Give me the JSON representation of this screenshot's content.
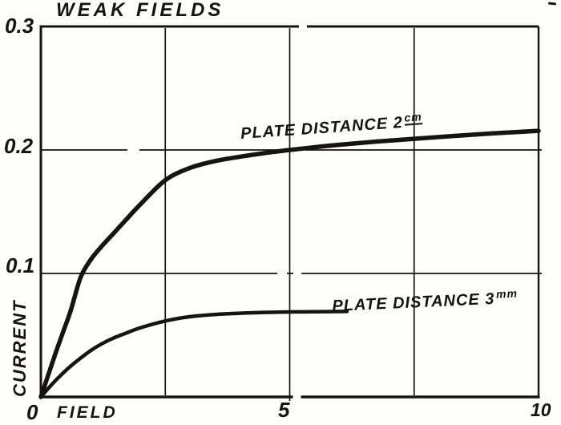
{
  "figure": {
    "title": "WEAK FIELDS",
    "x_axis_label": "FIELD",
    "y_axis_label": "CURRENT",
    "origin_label": "0",
    "x_tick_labels": {
      "v5": "5",
      "v10": "10"
    },
    "y_tick_labels": {
      "v01": "0.1",
      "v02": "0.2",
      "v03": "0.3"
    },
    "ink_color": "#171310",
    "paper_color": "#fdfdfb"
  },
  "chart_data": {
    "type": "line",
    "title": "WEAK FIELDS",
    "xlabel": "FIELD",
    "ylabel": "CURRENT",
    "xlim": [
      0,
      10
    ],
    "ylim": [
      0,
      0.3
    ],
    "x_ticks": [
      0,
      5,
      10
    ],
    "y_ticks": [
      0,
      0.1,
      0.2,
      0.3
    ],
    "x_gridlines": [
      2.5,
      5,
      7.5
    ],
    "y_gridlines": [
      0.1,
      0.2
    ],
    "grid": true,
    "legend_position": "labels-along-curves",
    "series": [
      {
        "id": "plate-distance-2cm",
        "name": "PLATE DISTANCE 2cm",
        "label_main": "PLATE DISTANCE 2",
        "label_sup": "cm",
        "points": [
          [
            0,
            0
          ],
          [
            0.15,
            0.018
          ],
          [
            0.3,
            0.036
          ],
          [
            0.45,
            0.053
          ],
          [
            0.6,
            0.07
          ],
          [
            0.8,
            0.097
          ],
          [
            1.0,
            0.111
          ],
          [
            1.2,
            0.121
          ],
          [
            1.45,
            0.132
          ],
          [
            1.7,
            0.143
          ],
          [
            2.0,
            0.156
          ],
          [
            2.5,
            0.1755
          ],
          [
            3.0,
            0.1855
          ],
          [
            3.5,
            0.191
          ],
          [
            4.0,
            0.1945
          ],
          [
            4.5,
            0.1975
          ],
          [
            5.0,
            0.2
          ],
          [
            5.5,
            0.2022
          ],
          [
            6.0,
            0.2042
          ],
          [
            6.75,
            0.2068
          ],
          [
            7.5,
            0.209
          ],
          [
            8.25,
            0.2112
          ],
          [
            9.0,
            0.2132
          ],
          [
            10,
            0.2155
          ]
        ]
      },
      {
        "id": "plate-distance-3mm",
        "name": "PLATE DISTANCE 3mm",
        "label_main": "PLATE DISTANCE 3",
        "label_sup": "mm",
        "points": [
          [
            0,
            0
          ],
          [
            0.15,
            0.007
          ],
          [
            0.3,
            0.0135
          ],
          [
            0.45,
            0.0195
          ],
          [
            0.6,
            0.025
          ],
          [
            0.8,
            0.0315
          ],
          [
            1.0,
            0.0375
          ],
          [
            1.2,
            0.0425
          ],
          [
            1.45,
            0.0475
          ],
          [
            1.7,
            0.0515
          ],
          [
            2.0,
            0.056
          ],
          [
            2.5,
            0.0615
          ],
          [
            3.0,
            0.065
          ],
          [
            3.5,
            0.0668
          ],
          [
            4.0,
            0.0678
          ],
          [
            4.5,
            0.0684
          ],
          [
            5.0,
            0.0688
          ],
          [
            5.5,
            0.069
          ],
          [
            6.15,
            0.0692
          ]
        ]
      }
    ]
  }
}
